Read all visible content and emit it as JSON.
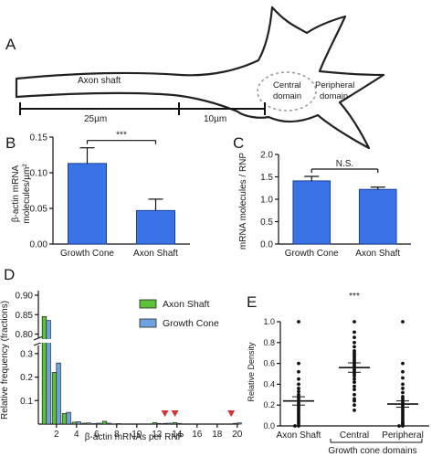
{
  "panels": {
    "a": {
      "letter": "A",
      "axon_label": "Axon shaft",
      "scale_left": "25µm",
      "scale_right": "10µm",
      "central": [
        "Central",
        "domain"
      ],
      "peripheral": [
        "Peripheral",
        "domain"
      ]
    },
    "b": {
      "letter": "B"
    },
    "c": {
      "letter": "C"
    },
    "d": {
      "letter": "D"
    },
    "e": {
      "letter": "E"
    }
  },
  "colors": {
    "growth_cone": "#3a73e6",
    "axon_shaft_green": "#5cc23a",
    "growth_cone_hist": "#6fa3e0",
    "error": "#111111",
    "arrowhead": "#d93030",
    "dashed_ellipse": "#999999"
  },
  "chart_data": [
    {
      "id": "B",
      "type": "bar",
      "categories": [
        "Growth Cone",
        "Axon Shaft"
      ],
      "values": [
        0.113,
        0.047
      ],
      "errors": [
        0.022,
        0.016
      ],
      "ylabel": [
        "β-actin mRNA",
        "molecules/µm²"
      ],
      "ylim": [
        0,
        0.15
      ],
      "yticks": [
        "0.00",
        "0.05",
        "0.10",
        "0.15"
      ],
      "significance": "***"
    },
    {
      "id": "C",
      "type": "bar",
      "categories": [
        "Growth Cone",
        "Axon Shaft"
      ],
      "values": [
        1.41,
        1.22
      ],
      "errors": [
        0.1,
        0.05
      ],
      "ylabel": "mRNA molecules / RNP",
      "ylim": [
        0,
        2.0
      ],
      "yticks": [
        "0.0",
        "0.5",
        "1.0",
        "1.5",
        "2.0"
      ],
      "significance": "N.S."
    },
    {
      "id": "D",
      "type": "bar",
      "xlabel": "β-actin mRNAs per RNP",
      "ylabel": "Relative frequency (fractions)",
      "xticks": [
        "2",
        "4",
        "6",
        "8",
        "10",
        "12",
        "14",
        "16",
        "18",
        "20"
      ],
      "yticks_lower": [
        "0.1",
        "0.2",
        "0.3"
      ],
      "yticks_upper": [
        "0.80",
        "0.85",
        "0.90"
      ],
      "axis_break": [
        0.35,
        0.78
      ],
      "bins": [
        1,
        2,
        3,
        4,
        5,
        6,
        7,
        8,
        12,
        13,
        14,
        20
      ],
      "series": [
        {
          "name": "Axon Shaft",
          "values": [
            0.845,
            0.22,
            0.045,
            0.008,
            0.004,
            0.002,
            0.012,
            0,
            0.006,
            0.003,
            0.006,
            0.003
          ]
        },
        {
          "name": "Growth Cone",
          "values": [
            0.835,
            0.26,
            0.05,
            0.01,
            0.005,
            0.004,
            0.004,
            0.002,
            0.003,
            0.004,
            0.003,
            0.005
          ]
        }
      ],
      "markers_at": [
        12.8,
        13.8,
        19.4
      ],
      "legend": "top-right"
    },
    {
      "id": "E",
      "type": "scatter",
      "categories": [
        "Axon Shaft",
        "Central",
        "Peripheral"
      ],
      "group_label": "Growth cone domains",
      "ylabel": "Relative Density",
      "ylim": [
        0,
        1.0
      ],
      "yticks": [
        "0.0",
        "0.2",
        "0.4",
        "0.6",
        "0.8",
        "1.0"
      ],
      "means": [
        0.24,
        0.56,
        0.21
      ],
      "sems": [
        0.04,
        0.045,
        0.03
      ],
      "significance": "***",
      "points": [
        [
          1.0,
          0.6,
          0.52,
          0.45,
          0.4,
          0.36,
          0.33,
          0.3,
          0.28,
          0.26,
          0.24,
          0.22,
          0.2,
          0.18,
          0.16,
          0.14,
          0.12,
          0.1,
          0.08,
          0.06,
          0.04,
          0.02,
          0.0,
          0.0
        ],
        [
          1.0,
          0.9,
          0.85,
          0.8,
          0.76,
          0.72,
          0.7,
          0.68,
          0.66,
          0.64,
          0.62,
          0.6,
          0.58,
          0.56,
          0.54,
          0.52,
          0.5,
          0.48,
          0.45,
          0.42,
          0.38,
          0.35,
          0.3,
          0.26,
          0.24,
          0.2,
          0.15
        ],
        [
          1.0,
          0.6,
          0.52,
          0.46,
          0.4,
          0.36,
          0.32,
          0.28,
          0.26,
          0.24,
          0.22,
          0.2,
          0.18,
          0.16,
          0.14,
          0.12,
          0.1,
          0.08,
          0.06,
          0.04,
          0.03,
          0.02,
          0.01,
          0.0,
          0.0
        ]
      ]
    }
  ]
}
